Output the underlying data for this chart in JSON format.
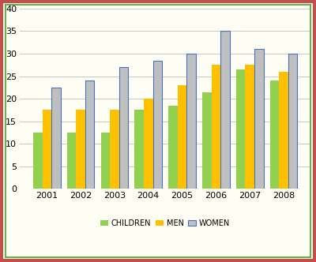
{
  "years": [
    "2001",
    "2002",
    "2003",
    "2004",
    "2005",
    "2006",
    "2007",
    "2008"
  ],
  "children": [
    12.5,
    12.5,
    12.5,
    17.5,
    18.5,
    21.5,
    26.5,
    24.0
  ],
  "men": [
    17.5,
    17.5,
    17.5,
    20.0,
    23.0,
    27.5,
    27.5,
    26.0
  ],
  "women": [
    22.5,
    24.0,
    27.0,
    28.5,
    30.0,
    35.0,
    31.0,
    30.0
  ],
  "color_children": "#92d050",
  "color_men": "#ffc000",
  "color_women": "#bfbfbf",
  "color_women_edge": "#4472c4",
  "legend_labels": [
    "CHILDREN",
    "MEN",
    "WOMEN"
  ],
  "ylim": [
    0,
    40
  ],
  "yticks": [
    0,
    5,
    10,
    15,
    20,
    25,
    30,
    35,
    40
  ],
  "bar_width": 0.27,
  "outer_border_color": "#c0504d",
  "inner_border_color": "#70ad47",
  "bg_color": "#fffef5",
  "plot_bg_color": "#fffef5",
  "grid_color": "#c8c8c8",
  "tick_fontsize": 8,
  "legend_fontsize": 7
}
